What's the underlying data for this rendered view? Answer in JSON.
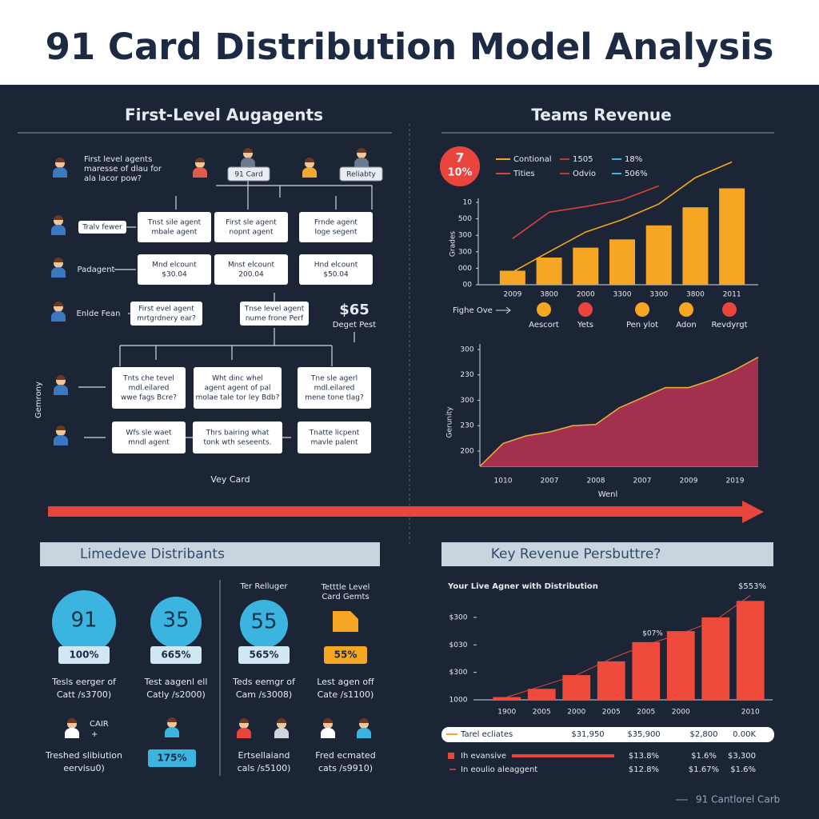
{
  "header": {
    "title": "91 Card Distribution Model Analysis"
  },
  "agents": {
    "title": "First-Level Augagents",
    "intro": [
      "First level agents",
      "maresse of dlau for",
      "ala lacor pow?"
    ],
    "tags": [
      "91 Card",
      "Reliabty"
    ],
    "side_labels": [
      "Tralv fewer",
      "Padagent",
      "Enlde Fean"
    ],
    "rows": [
      [
        [
          "Tnst sile agent",
          "mbale agent"
        ],
        [
          "First sle agent",
          "nopnt agent"
        ],
        [
          "Frnde agent",
          "Ioge segent"
        ]
      ],
      [
        [
          "Mnd elcount",
          "$30.04"
        ],
        [
          "Mnst elcount",
          "200.04"
        ],
        [
          "Hnd elcount",
          "$50.04"
        ]
      ],
      [
        [
          "First evel agent",
          "mrtgrdnery ear?"
        ],
        [
          "Tnse level agent",
          "nume frone Perf"
        ]
      ],
      [
        [
          "Tnts che tevel",
          "mdl.eilared",
          "wwe fags Bcre?"
        ],
        [
          "Wht dinc whel",
          "agent agent of pal",
          "molae tale tor ley Bdb?"
        ],
        [
          "Tne sle agerl",
          "mdl.eilared",
          "mene tone tlag?"
        ]
      ],
      [
        [
          "Wfs sle waet",
          "mndl agent"
        ],
        [
          "Thrs bairing what",
          "tonk wth seseents."
        ],
        [
          "Tnatte licpent",
          "mavle palent"
        ]
      ]
    ],
    "price": "$65",
    "price_note": "Deget Pest",
    "vertical_label": "Gemrony",
    "footer": "Vey Card"
  },
  "teams_revenue": {
    "title": "Teams Revenue",
    "badge": [
      "7",
      "10%"
    ],
    "bar_chart": {
      "type": "bar",
      "y_label": "Grades",
      "categories": [
        "2009",
        "3800",
        "2000",
        "3300",
        "3300",
        "3800",
        "2011"
      ],
      "values": [
        1.7,
        3.3,
        4.5,
        5.5,
        7.2,
        9.4,
        11.7
      ],
      "color": "#f5a623",
      "ylim": [
        0,
        15
      ],
      "yticks": [
        10,
        {
          "value": 8,
          "label": "500"
        },
        {
          "value": 6,
          "label": "300"
        },
        {
          "value": 4,
          "label": "300"
        },
        {
          "value": 2,
          "label": "000"
        },
        {
          "value": 0,
          "label": "00"
        }
      ],
      "series": [
        {
          "name": "Contional",
          "color": "#f5a623",
          "values": [
            1.55,
            4.0,
            6.4,
            7.9,
            9.8,
            13.0,
            14.9
          ]
        },
        {
          "name": "Tities",
          "color": "#d9433a",
          "values": [
            5.6,
            8.8,
            9.5,
            10.3,
            12.0,
            null,
            null
          ]
        }
      ],
      "legend_extra": [
        {
          "text": "1505",
          "color": "#c0392b"
        },
        {
          "text": "18%",
          "color": "#3fb5e5"
        },
        {
          "text": "Odvio",
          "color": "#c0392b"
        },
        {
          "text": "506%",
          "color": "#3fb5e5"
        }
      ]
    },
    "icons_caption": "Fighe Ove",
    "icon_labels": [
      "Aescort",
      "Yets",
      "Pen ylot",
      "Adon",
      "Revdyrgt"
    ],
    "area_chart": {
      "type": "area",
      "y_label": "Gerunity",
      "x_label": "Wenl",
      "categories": [
        null,
        "1010",
        null,
        "2007",
        null,
        "2008",
        null,
        "2007",
        null,
        "2009",
        null,
        "2019",
        null
      ],
      "values": [
        0.4,
        1.3,
        1.6,
        1.75,
        2.0,
        2.05,
        2.7,
        3.1,
        3.5,
        3.5,
        3.8,
        4.2,
        4.7
      ],
      "color": "#a3304f",
      "ylim": [
        0.4,
        5
      ],
      "yticks": [
        {
          "value": 5,
          "label": "300"
        },
        {
          "value": 4,
          "label": "230"
        },
        {
          "value": 3,
          "label": "300"
        },
        {
          "value": 2,
          "label": "230"
        },
        {
          "value": 1,
          "label": "200"
        }
      ]
    }
  },
  "distribution": {
    "title": "Limedeve Distribants",
    "heading_3": "Ter Relluger",
    "heading_4": [
      "Tetttle Level",
      "Card Gemts"
    ],
    "stats": [
      {
        "value": "91",
        "pill": "100%",
        "desc": [
          "Tesls eerger of",
          "Catt /s3700)"
        ]
      },
      {
        "value": "35",
        "pill": "665%",
        "desc": [
          "Test aagenl ell",
          "Catly /s2000)"
        ]
      },
      {
        "value": "55",
        "pill": "565%",
        "desc": [
          "Teds eemgr of",
          "Cam /s3008)"
        ]
      },
      {
        "pill": "55%",
        "desc": [
          "Lest agen off",
          "Cate /s1100)"
        ]
      }
    ],
    "badge": "CAIR",
    "plus": "+",
    "pill_2": "175%",
    "notes": [
      [
        "Treshed slibiution",
        "eervisu0)"
      ],
      [
        "Ertsellaiand",
        "cals /s5100)"
      ],
      [
        "Fred ecmated",
        "cats /s9910)"
      ]
    ]
  },
  "key_revenue": {
    "title": "Key Revenue Persbuttre?",
    "chart": {
      "type": "bar",
      "title": "Your Live Agner with Distribution",
      "corner_note": "$553%",
      "annotation": "$07%",
      "categories": [
        "1900",
        "2005",
        "2000",
        "2005",
        "2005",
        "2000",
        null,
        "2010"
      ],
      "values": [
        0.1,
        0.4,
        0.9,
        1.4,
        2.1,
        2.5,
        3.0,
        3.6
      ],
      "trend": [
        0.1,
        0.5,
        0.9,
        1.5,
        2.0,
        2.4,
        2.9,
        3.8
      ],
      "color": "#ef4a3c",
      "ylim": [
        0,
        3.9
      ],
      "yticks": [
        {
          "value": 3,
          "label": "$300"
        },
        {
          "value": 2,
          "label": "$030"
        },
        {
          "value": 1,
          "label": "$300"
        },
        {
          "value": 0,
          "label": "1000"
        }
      ]
    },
    "table": [
      [
        "Tarel ecliates",
        "$31,950",
        "$35,900",
        "$2,800",
        "0.00K"
      ],
      [
        "Ih evansive",
        "$13.8%",
        "$1.6%",
        "$3,300"
      ],
      [
        "In eoulio aleaggent",
        "$12.8%",
        "$1.67%",
        "$1.6%"
      ]
    ]
  },
  "footer": "91 Cantlorel Carb"
}
